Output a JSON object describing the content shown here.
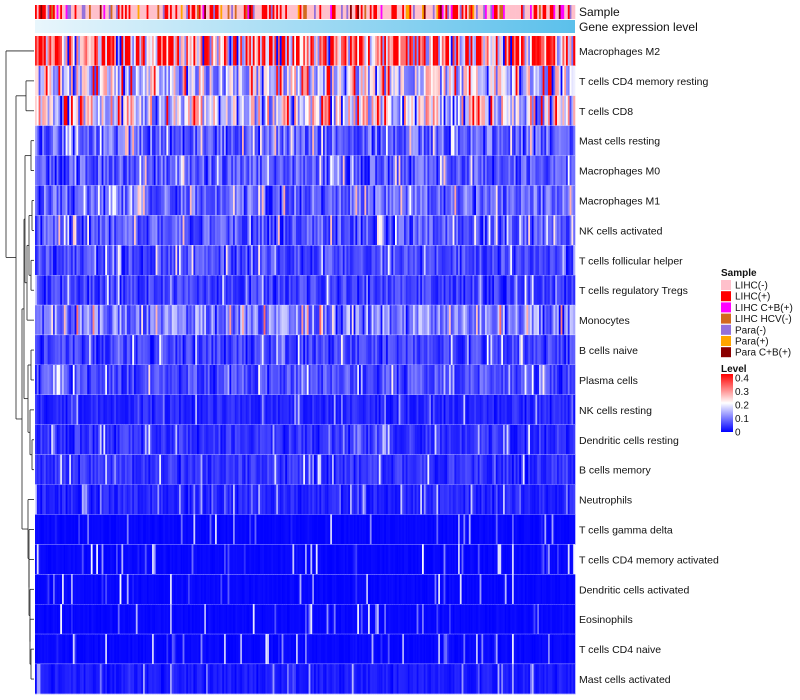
{
  "chart_data": {
    "type": "heatmap",
    "n_samples": 300,
    "annotations": {
      "sample_label": "Sample",
      "level_label": "Gene expression level"
    },
    "rows": [
      {
        "name": "Macrophages M2",
        "mean": 0.3
      },
      {
        "name": "T cells CD4 memory resting",
        "mean": 0.17
      },
      {
        "name": "T cells CD8",
        "mean": 0.19
      },
      {
        "name": "Mast cells resting",
        "mean": 0.08
      },
      {
        "name": "Macrophages M0",
        "mean": 0.07
      },
      {
        "name": "Macrophages M1",
        "mean": 0.08
      },
      {
        "name": "NK cells activated",
        "mean": 0.07
      },
      {
        "name": "T cells follicular helper",
        "mean": 0.06
      },
      {
        "name": "T cells regulatory  Tregs",
        "mean": 0.05
      },
      {
        "name": "Monocytes",
        "mean": 0.1
      },
      {
        "name": "B cells naive",
        "mean": 0.05
      },
      {
        "name": "Plasma cells",
        "mean": 0.06
      },
      {
        "name": "NK cells resting",
        "mean": 0.03
      },
      {
        "name": "Dendritic cells resting",
        "mean": 0.04
      },
      {
        "name": "B cells memory",
        "mean": 0.04
      },
      {
        "name": "Neutrophils",
        "mean": 0.03
      },
      {
        "name": "T cells gamma delta",
        "mean": 0.01
      },
      {
        "name": "T cells CD4 memory activated",
        "mean": 0.01
      },
      {
        "name": "Dendritic cells activated",
        "mean": 0.01
      },
      {
        "name": "Eosinophils",
        "mean": 0.01
      },
      {
        "name": "T cells CD4 naive",
        "mean": 0.01
      },
      {
        "name": "Mast cells activated",
        "mean": 0.02
      }
    ],
    "sample_legend": {
      "title": "Sample",
      "items": [
        {
          "label": "LIHC(-)",
          "color": "#FFC0CB"
        },
        {
          "label": "LIHC(+)",
          "color": "#FF0000"
        },
        {
          "label": "LIHC C+B(+)",
          "color": "#FF00FF"
        },
        {
          "label": "LIHC HCV(-)",
          "color": "#D2691E"
        },
        {
          "label": "Para(-)",
          "color": "#9370DB"
        },
        {
          "label": "Para(+)",
          "color": "#FFA500"
        },
        {
          "label": "Para C+B(+)",
          "color": "#8B0000"
        }
      ]
    },
    "level_legend": {
      "title": "Level",
      "ticks": [
        "0.4",
        "0.3",
        "0.2",
        "0.1",
        "0"
      ],
      "range": [
        0,
        0.4
      ]
    },
    "colors": {
      "low": "#0000FF",
      "mid": "#FFFFFF",
      "high": "#FF0000",
      "level_annotation": "#5BC0EB"
    }
  }
}
